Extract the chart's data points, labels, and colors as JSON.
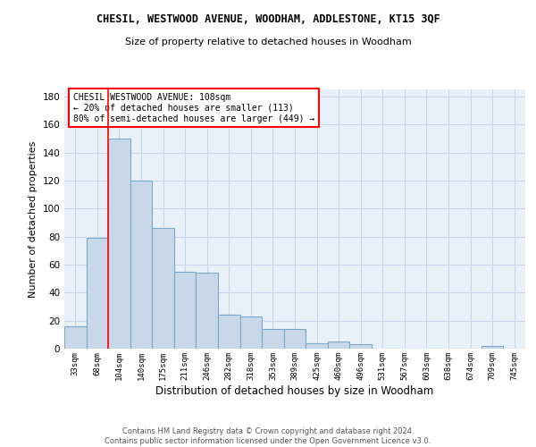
{
  "title": "CHESIL, WESTWOOD AVENUE, WOODHAM, ADDLESTONE, KT15 3QF",
  "subtitle": "Size of property relative to detached houses in Woodham",
  "xlabel": "Distribution of detached houses by size in Woodham",
  "ylabel": "Number of detached properties",
  "bar_color": "#c8d8e8",
  "bar_edge_color": "#7aaac8",
  "grid_color": "#c8d8ea",
  "bg_color": "#e8f0f8",
  "categories": [
    "33sqm",
    "68sqm",
    "104sqm",
    "140sqm",
    "175sqm",
    "211sqm",
    "246sqm",
    "282sqm",
    "318sqm",
    "353sqm",
    "389sqm",
    "425sqm",
    "460sqm",
    "496sqm",
    "531sqm",
    "567sqm",
    "603sqm",
    "638sqm",
    "674sqm",
    "709sqm",
    "745sqm"
  ],
  "values": [
    16,
    79,
    150,
    120,
    86,
    55,
    54,
    24,
    23,
    14,
    14,
    4,
    5,
    3,
    0,
    0,
    0,
    0,
    0,
    2,
    0
  ],
  "ylim": [
    0,
    185
  ],
  "yticks": [
    0,
    20,
    40,
    60,
    80,
    100,
    120,
    140,
    160,
    180
  ],
  "redline_x": 2,
  "annotation_text": "CHESIL WESTWOOD AVENUE: 108sqm\n← 20% of detached houses are smaller (113)\n80% of semi-detached houses are larger (449) →",
  "footer_line1": "Contains HM Land Registry data © Crown copyright and database right 2024.",
  "footer_line2": "Contains public sector information licensed under the Open Government Licence v3.0."
}
